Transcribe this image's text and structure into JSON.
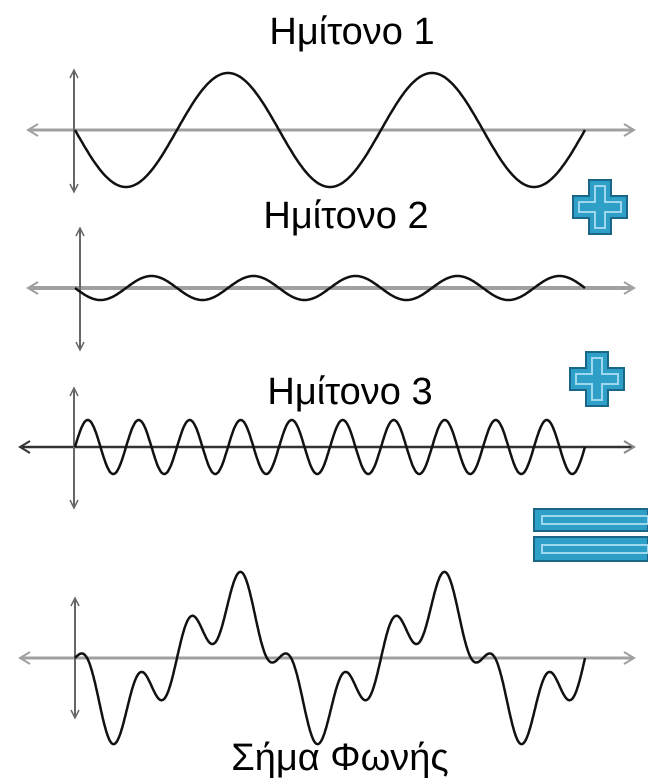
{
  "labels": {
    "sine1": "Ημίτονο 1",
    "sine2": "Ημίτονο 2",
    "sine3": "Ημίτονο 3",
    "result": "Σήμα Φωνής"
  },
  "waves": [
    {
      "key": "sine1",
      "cycles": 2.5,
      "amplitude": 1.0,
      "phase": "starts-descending"
    },
    {
      "key": "sine2",
      "cycles": 5,
      "amplitude": 0.2,
      "phase": "starts-descending"
    },
    {
      "key": "sine3",
      "cycles": 10,
      "amplitude": 0.5,
      "phase": "starts-ascending"
    },
    {
      "key": "result",
      "components": [
        "sine1",
        "sine2",
        "sine3"
      ]
    }
  ],
  "operators": [
    "plus",
    "plus",
    "equals"
  ],
  "colors": {
    "axis": "#a0a0a0",
    "axis_dark": "#333333",
    "wave": "#111111",
    "operator_fill": "#2e9fc6",
    "operator_edge": "#1a6688",
    "operator_light": "#9fd8ee"
  },
  "icons": [
    "plus-icon",
    "plus-icon",
    "equals-icon"
  ]
}
